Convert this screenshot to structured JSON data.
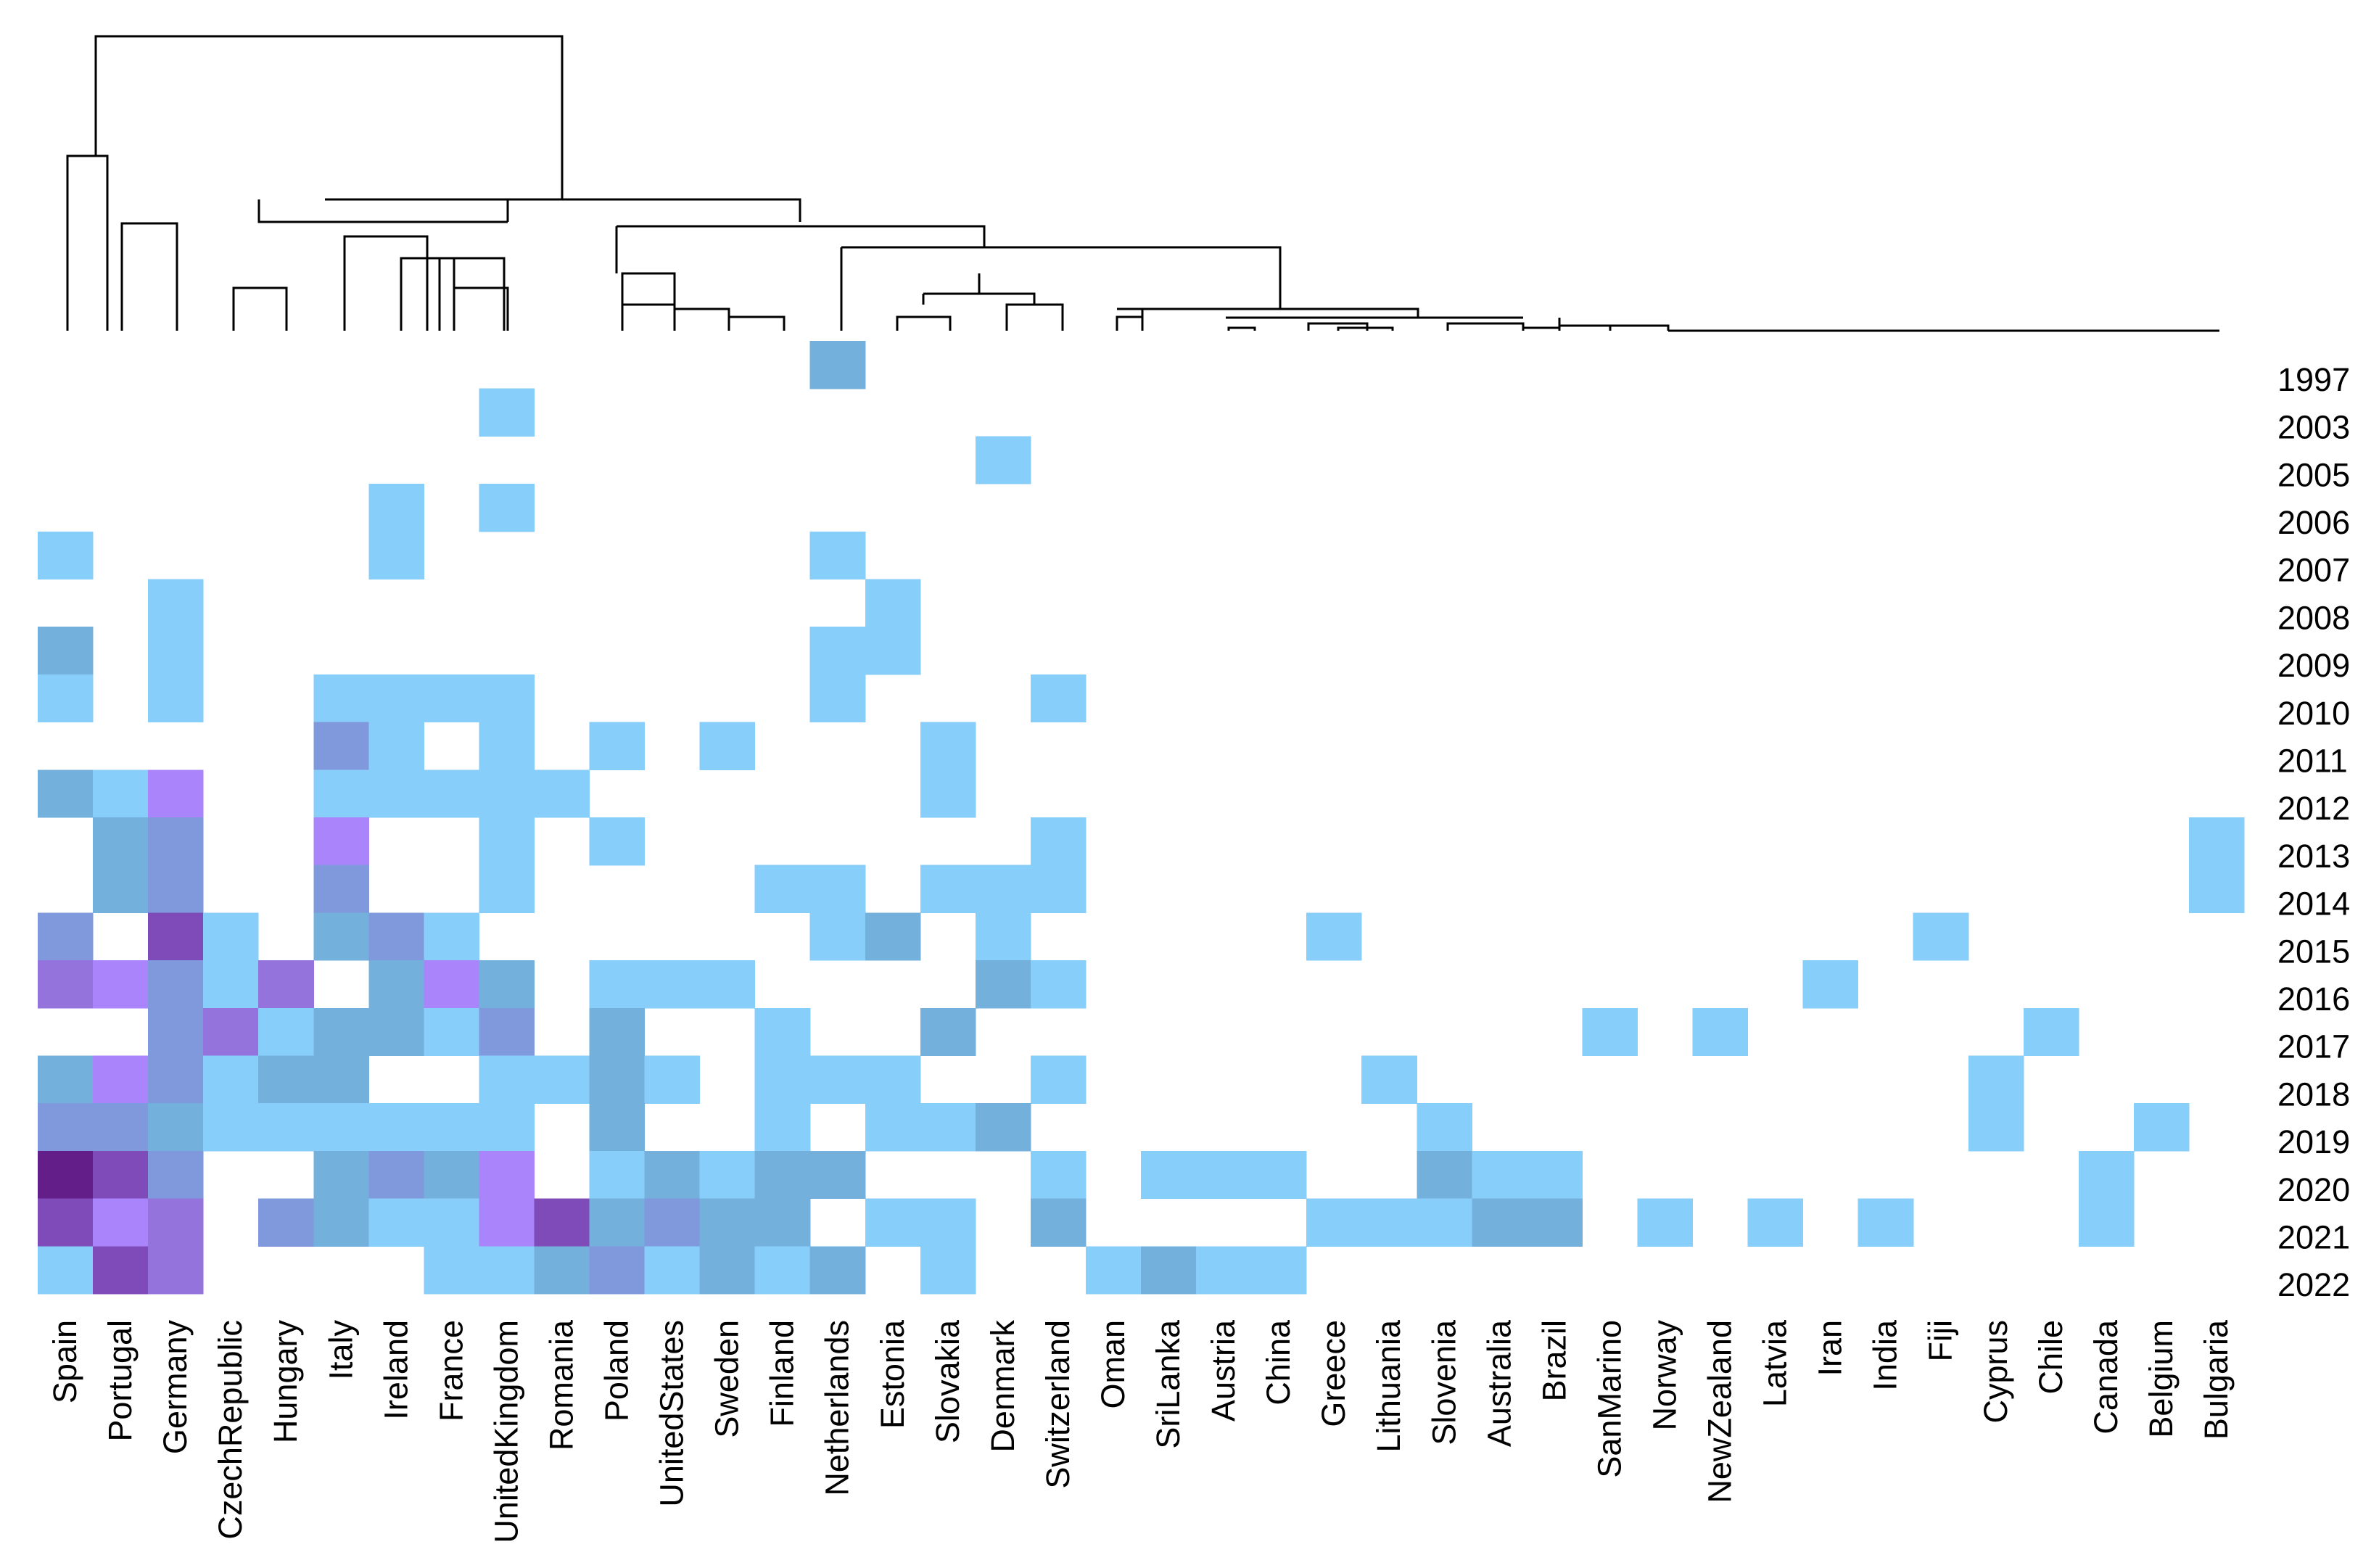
{
  "chart_data": {
    "type": "heatmap",
    "title": "",
    "xlabel": "",
    "ylabel": "",
    "columns": [
      "Spain",
      "Portugal",
      "Germany",
      "CzechRepublic",
      "Hungary",
      "Italy",
      "Ireland",
      "France",
      "UnitedKingdom",
      "Romania",
      "Poland",
      "UnitedStates",
      "Sweden",
      "Finland",
      "Netherlands",
      "Estonia",
      "Slovakia",
      "Denmark",
      "Switzerland",
      "Oman",
      "SriLanka",
      "Austria",
      "China",
      "Greece",
      "Lithuania",
      "Slovenia",
      "Australia",
      "Brazil",
      "SanMarino",
      "Norway",
      "NewZealand",
      "Latvia",
      "Iran",
      "India",
      "Fiji",
      "Cyprus",
      "Chile",
      "Canada",
      "Belgium",
      "Bulgaria"
    ],
    "rows": [
      "1997",
      "2003",
      "2005",
      "2006",
      "2007",
      "2008",
      "2009",
      "2010",
      "2011",
      "2012",
      "2013",
      "2014",
      "2015",
      "2016",
      "2017",
      "2018",
      "2019",
      "2020",
      "2021",
      "2022"
    ],
    "color_scale": {
      "1": "#87cefa",
      "2": "#74b0dc",
      "3": "#8099dc",
      "4": "#9473dc",
      "5": "#a984fb",
      "6": "#7f4bb8",
      "7": "#641e8a"
    },
    "values": [
      [
        0,
        0,
        0,
        0,
        0,
        0,
        0,
        0,
        0,
        0,
        0,
        0,
        0,
        0,
        2,
        0,
        0,
        0,
        0,
        0,
        0,
        0,
        0,
        0,
        0,
        0,
        0,
        0,
        0,
        0,
        0,
        0,
        0,
        0,
        0,
        0,
        0,
        0,
        0,
        0
      ],
      [
        0,
        0,
        0,
        0,
        0,
        0,
        0,
        0,
        1,
        0,
        0,
        0,
        0,
        0,
        0,
        0,
        0,
        0,
        0,
        0,
        0,
        0,
        0,
        0,
        0,
        0,
        0,
        0,
        0,
        0,
        0,
        0,
        0,
        0,
        0,
        0,
        0,
        0,
        0,
        0
      ],
      [
        0,
        0,
        0,
        0,
        0,
        0,
        0,
        0,
        0,
        0,
        0,
        0,
        0,
        0,
        0,
        0,
        0,
        1,
        0,
        0,
        0,
        0,
        0,
        0,
        0,
        0,
        0,
        0,
        0,
        0,
        0,
        0,
        0,
        0,
        0,
        0,
        0,
        0,
        0,
        0
      ],
      [
        0,
        0,
        0,
        0,
        0,
        0,
        1,
        0,
        1,
        0,
        0,
        0,
        0,
        0,
        0,
        0,
        0,
        0,
        0,
        0,
        0,
        0,
        0,
        0,
        0,
        0,
        0,
        0,
        0,
        0,
        0,
        0,
        0,
        0,
        0,
        0,
        0,
        0,
        0,
        0
      ],
      [
        1,
        0,
        0,
        0,
        0,
        0,
        1,
        0,
        0,
        0,
        0,
        0,
        0,
        0,
        1,
        0,
        0,
        0,
        0,
        0,
        0,
        0,
        0,
        0,
        0,
        0,
        0,
        0,
        0,
        0,
        0,
        0,
        0,
        0,
        0,
        0,
        0,
        0,
        0,
        0
      ],
      [
        0,
        0,
        1,
        0,
        0,
        0,
        0,
        0,
        0,
        0,
        0,
        0,
        0,
        0,
        0,
        1,
        0,
        0,
        0,
        0,
        0,
        0,
        0,
        0,
        0,
        0,
        0,
        0,
        0,
        0,
        0,
        0,
        0,
        0,
        0,
        0,
        0,
        0,
        0,
        0
      ],
      [
        2,
        0,
        1,
        0,
        0,
        0,
        0,
        0,
        0,
        0,
        0,
        0,
        0,
        0,
        1,
        1,
        0,
        0,
        0,
        0,
        0,
        0,
        0,
        0,
        0,
        0,
        0,
        0,
        0,
        0,
        0,
        0,
        0,
        0,
        0,
        0,
        0,
        0,
        0,
        0
      ],
      [
        1,
        0,
        1,
        0,
        0,
        1,
        1,
        1,
        1,
        0,
        0,
        0,
        0,
        0,
        1,
        0,
        0,
        0,
        1,
        0,
        0,
        0,
        0,
        0,
        0,
        0,
        0,
        0,
        0,
        0,
        0,
        0,
        0,
        0,
        0,
        0,
        0,
        0,
        0,
        0
      ],
      [
        0,
        0,
        0,
        0,
        0,
        3,
        1,
        0,
        1,
        0,
        1,
        0,
        1,
        0,
        0,
        0,
        1,
        0,
        0,
        0,
        0,
        0,
        0,
        0,
        0,
        0,
        0,
        0,
        0,
        0,
        0,
        0,
        0,
        0,
        0,
        0,
        0,
        0,
        0,
        0
      ],
      [
        2,
        1,
        5,
        0,
        0,
        1,
        1,
        1,
        1,
        1,
        0,
        0,
        0,
        0,
        0,
        0,
        1,
        0,
        0,
        0,
        0,
        0,
        0,
        0,
        0,
        0,
        0,
        0,
        0,
        0,
        0,
        0,
        0,
        0,
        0,
        0,
        0,
        0,
        0,
        0
      ],
      [
        0,
        2,
        3,
        0,
        0,
        5,
        0,
        0,
        1,
        0,
        1,
        0,
        0,
        0,
        0,
        0,
        0,
        0,
        1,
        0,
        0,
        0,
        0,
        0,
        0,
        0,
        0,
        0,
        0,
        0,
        0,
        0,
        0,
        0,
        0,
        0,
        0,
        0,
        0,
        1
      ],
      [
        0,
        2,
        3,
        0,
        0,
        3,
        0,
        0,
        1,
        0,
        0,
        0,
        0,
        1,
        1,
        0,
        1,
        1,
        1,
        0,
        0,
        0,
        0,
        0,
        0,
        0,
        0,
        0,
        0,
        0,
        0,
        0,
        0,
        0,
        0,
        0,
        0,
        0,
        0,
        1
      ],
      [
        3,
        0,
        6,
        1,
        0,
        2,
        3,
        1,
        0,
        0,
        0,
        0,
        0,
        0,
        1,
        2,
        0,
        1,
        0,
        0,
        0,
        0,
        0,
        1,
        0,
        0,
        0,
        0,
        0,
        0,
        0,
        0,
        0,
        0,
        1,
        0,
        0,
        0,
        0,
        0
      ],
      [
        4,
        5,
        3,
        1,
        4,
        0,
        2,
        5,
        2,
        0,
        1,
        1,
        1,
        0,
        0,
        0,
        0,
        2,
        1,
        0,
        0,
        0,
        0,
        0,
        0,
        0,
        0,
        0,
        0,
        0,
        0,
        0,
        1,
        0,
        0,
        0,
        0,
        0,
        0,
        0
      ],
      [
        0,
        0,
        3,
        4,
        1,
        2,
        2,
        1,
        3,
        0,
        2,
        0,
        0,
        1,
        0,
        0,
        2,
        0,
        0,
        0,
        0,
        0,
        0,
        0,
        0,
        0,
        0,
        0,
        1,
        0,
        1,
        0,
        0,
        0,
        0,
        0,
        1,
        0,
        0,
        0
      ],
      [
        2,
        5,
        3,
        1,
        2,
        2,
        0,
        0,
        1,
        1,
        2,
        1,
        0,
        1,
        1,
        1,
        0,
        0,
        1,
        0,
        0,
        0,
        0,
        0,
        1,
        0,
        0,
        0,
        0,
        0,
        0,
        0,
        0,
        0,
        0,
        1,
        0,
        0,
        0,
        0
      ],
      [
        3,
        3,
        2,
        1,
        1,
        1,
        1,
        1,
        1,
        0,
        2,
        0,
        0,
        1,
        0,
        1,
        1,
        2,
        0,
        0,
        0,
        0,
        0,
        0,
        0,
        1,
        0,
        0,
        0,
        0,
        0,
        0,
        0,
        0,
        0,
        1,
        0,
        0,
        1,
        0
      ],
      [
        7,
        6,
        3,
        0,
        0,
        2,
        3,
        2,
        5,
        0,
        1,
        2,
        1,
        2,
        2,
        0,
        0,
        0,
        1,
        0,
        1,
        1,
        1,
        0,
        0,
        2,
        1,
        1,
        0,
        0,
        0,
        0,
        0,
        0,
        0,
        0,
        0,
        1,
        0,
        0
      ],
      [
        6,
        5,
        4,
        0,
        3,
        2,
        1,
        1,
        5,
        6,
        2,
        3,
        2,
        2,
        0,
        1,
        1,
        0,
        2,
        0,
        0,
        0,
        0,
        1,
        1,
        1,
        2,
        2,
        0,
        1,
        0,
        1,
        0,
        1,
        0,
        0,
        0,
        1,
        0,
        0
      ],
      [
        1,
        6,
        4,
        0,
        0,
        0,
        0,
        1,
        1,
        2,
        3,
        1,
        2,
        1,
        2,
        0,
        1,
        0,
        0,
        1,
        2,
        1,
        1,
        0,
        0,
        0,
        0,
        0,
        0,
        0,
        0,
        0,
        0,
        0,
        0,
        0,
        0,
        0,
        0,
        0
      ]
    ]
  }
}
